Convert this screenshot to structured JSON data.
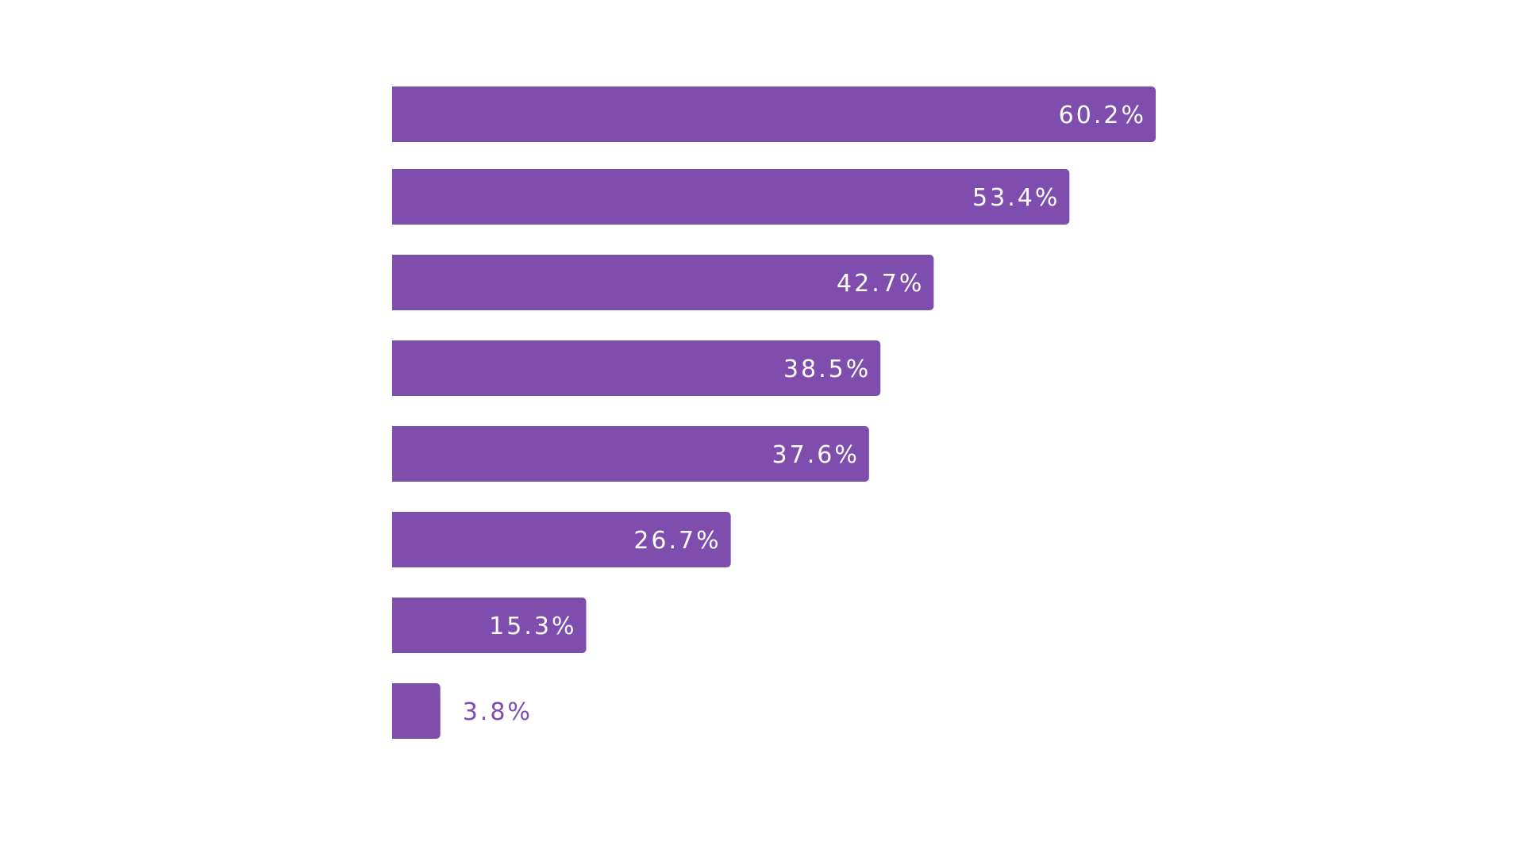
{
  "chart_data": {
    "type": "bar",
    "orientation": "horizontal",
    "categories": [
      "",
      "",
      "",
      "",
      "",
      "",
      "",
      ""
    ],
    "values": [
      60.2,
      53.4,
      42.7,
      38.5,
      37.6,
      26.7,
      15.3,
      3.8
    ],
    "data_labels": [
      "60.2%",
      "53.4%",
      "42.7%",
      "38.5%",
      "37.6%",
      "26.7%",
      "15.3%",
      "3.8%"
    ],
    "unit": "%",
    "title": "",
    "xlabel": "",
    "ylabel": "",
    "grid": false,
    "legend": "none",
    "colors": {
      "bar": "#7e4dae",
      "label_inside": "#ffffff",
      "label_outside": "#7e4dae"
    }
  }
}
